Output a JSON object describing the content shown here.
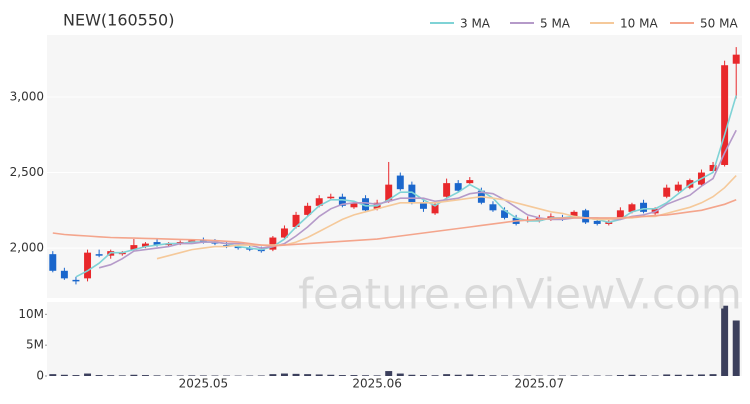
{
  "chart_data": {
    "type": "candlestick",
    "title": "NEW(160550)",
    "watermark": "feature.enViewV.com",
    "categories": [
      null,
      null,
      null,
      null,
      null,
      null,
      null,
      null,
      null,
      null,
      null,
      null,
      null,
      "2025.05",
      null,
      null,
      null,
      null,
      null,
      null,
      null,
      null,
      null,
      null,
      null,
      null,
      null,
      null,
      "2025.06",
      null,
      null,
      null,
      null,
      null,
      null,
      null,
      null,
      null,
      null,
      null,
      null,
      null,
      "2025.07",
      null,
      null,
      null,
      null,
      null,
      null,
      null,
      null,
      null,
      null,
      null,
      null,
      null,
      null,
      null,
      null,
      null
    ],
    "open": [
      1960,
      1850,
      1790,
      1800,
      1960,
      1950,
      1960,
      1990,
      2010,
      2040,
      2020,
      2030,
      2040,
      2050,
      2040,
      2020,
      2010,
      2000,
      1990,
      1990,
      2070,
      2140,
      2220,
      2280,
      2330,
      2340,
      2270,
      2330,
      2260,
      2310,
      2480,
      2420,
      2300,
      2230,
      2340,
      2430,
      2430,
      2380,
      2290,
      2250,
      2200,
      2180,
      2180,
      2190,
      2200,
      2210,
      2250,
      2180,
      2160,
      2200,
      2240,
      2300,
      2230,
      2340,
      2380,
      2400,
      2420,
      2510,
      2550,
      3220
    ],
    "high": [
      1980,
      1870,
      1810,
      1990,
      1990,
      1990,
      1980,
      2060,
      2040,
      2060,
      2040,
      2050,
      2060,
      2070,
      2060,
      2040,
      2030,
      2020,
      2010,
      2080,
      2150,
      2240,
      2300,
      2350,
      2360,
      2360,
      2310,
      2350,
      2320,
      2570,
      2500,
      2440,
      2320,
      2300,
      2460,
      2450,
      2470,
      2400,
      2310,
      2270,
      2220,
      2210,
      2220,
      2230,
      2220,
      2250,
      2260,
      2200,
      2190,
      2270,
      2300,
      2320,
      2270,
      2420,
      2440,
      2460,
      2520,
      2570,
      3240,
      3330
    ],
    "low": [
      1840,
      1790,
      1760,
      1780,
      1940,
      1930,
      1950,
      1980,
      2000,
      2010,
      2010,
      2020,
      2030,
      2030,
      2020,
      2000,
      1990,
      1980,
      1970,
      1980,
      2060,
      2130,
      2210,
      2270,
      2320,
      2270,
      2260,
      2240,
      2250,
      2300,
      2380,
      2290,
      2240,
      2220,
      2330,
      2370,
      2420,
      2290,
      2240,
      2190,
      2150,
      2170,
      2170,
      2180,
      2180,
      2200,
      2160,
      2150,
      2150,
      2190,
      2230,
      2230,
      2220,
      2330,
      2370,
      2390,
      2410,
      2500,
      2540,
      2990
    ],
    "close": [
      1850,
      1800,
      1780,
      1970,
      1950,
      1980,
      1970,
      2020,
      2030,
      2020,
      2030,
      2040,
      2050,
      2040,
      2030,
      2010,
      2000,
      1990,
      1980,
      2070,
      2130,
      2220,
      2280,
      2330,
      2340,
      2280,
      2300,
      2250,
      2300,
      2420,
      2390,
      2300,
      2260,
      2290,
      2430,
      2380,
      2450,
      2300,
      2250,
      2200,
      2160,
      2190,
      2200,
      2210,
      2190,
      2240,
      2170,
      2160,
      2170,
      2250,
      2290,
      2240,
      2260,
      2400,
      2420,
      2450,
      2500,
      2550,
      3210,
      3280
    ],
    "volume": [
      300000,
      200000,
      150000,
      400000,
      150000,
      120000,
      100000,
      200000,
      150000,
      100000,
      90000,
      80000,
      100000,
      90000,
      80000,
      70000,
      60000,
      70000,
      80000,
      300000,
      400000,
      350000,
      300000,
      250000,
      200000,
      150000,
      150000,
      120000,
      100000,
      800000,
      400000,
      200000,
      150000,
      120000,
      300000,
      200000,
      250000,
      150000,
      120000,
      100000,
      90000,
      80000,
      70000,
      70000,
      80000,
      100000,
      90000,
      80000,
      70000,
      150000,
      200000,
      120000,
      100000,
      250000,
      200000,
      200000,
      250000,
      300000,
      11400000,
      9000000
    ],
    "series": [
      {
        "name": "3 MA",
        "color": "#7fd3d6",
        "values": [
          null,
          null,
          1810,
          1850,
          1900,
          1970,
          1970,
          1990,
          2010,
          2020,
          2030,
          2030,
          2040,
          2040,
          2040,
          2030,
          2010,
          2000,
          1990,
          2010,
          2060,
          2140,
          2210,
          2280,
          2320,
          2320,
          2310,
          2280,
          2280,
          2320,
          2370,
          2370,
          2320,
          2280,
          2330,
          2370,
          2420,
          2380,
          2330,
          2250,
          2200,
          2180,
          2180,
          2200,
          2200,
          2210,
          2200,
          2190,
          2170,
          2190,
          2240,
          2260,
          2260,
          2300,
          2360,
          2420,
          2460,
          2500,
          2750,
          3010
        ]
      },
      {
        "name": "5 MA",
        "color": "#b59ac9",
        "values": [
          null,
          null,
          null,
          null,
          1870,
          1890,
          1930,
          1980,
          1990,
          2000,
          2010,
          2030,
          2030,
          2040,
          2040,
          2030,
          2030,
          2020,
          2000,
          2010,
          2030,
          2080,
          2140,
          2210,
          2260,
          2290,
          2300,
          2300,
          2290,
          2310,
          2330,
          2330,
          2330,
          2310,
          2320,
          2330,
          2360,
          2370,
          2360,
          2320,
          2270,
          2220,
          2200,
          2190,
          2190,
          2200,
          2200,
          2200,
          2190,
          2190,
          2210,
          2220,
          2240,
          2290,
          2320,
          2350,
          2410,
          2460,
          2630,
          2780
        ]
      },
      {
        "name": "10 MA",
        "color": "#f5c99a",
        "values": [
          null,
          null,
          null,
          null,
          null,
          null,
          null,
          null,
          null,
          1930,
          1950,
          1970,
          1990,
          2000,
          2010,
          2010,
          2020,
          2020,
          2020,
          2020,
          2020,
          2040,
          2070,
          2110,
          2150,
          2190,
          2220,
          2240,
          2260,
          2280,
          2300,
          2300,
          2300,
          2300,
          2310,
          2320,
          2330,
          2340,
          2330,
          2320,
          2300,
          2280,
          2260,
          2240,
          2230,
          2210,
          2200,
          2190,
          2190,
          2200,
          2200,
          2210,
          2210,
          2230,
          2250,
          2270,
          2300,
          2340,
          2400,
          2480
        ]
      },
      {
        "name": "50 MA",
        "color": "#f4a58c",
        "values": [
          2100,
          2090,
          2085,
          2080,
          2075,
          2070,
          2068,
          2066,
          2064,
          2062,
          2060,
          2058,
          2056,
          2054,
          2050,
          2045,
          2040,
          2030,
          2020,
          2015,
          2020,
          2025,
          2030,
          2035,
          2040,
          2045,
          2050,
          2055,
          2060,
          2070,
          2080,
          2090,
          2100,
          2110,
          2120,
          2130,
          2140,
          2150,
          2160,
          2170,
          2180,
          2185,
          2190,
          2195,
          2200,
          2200,
          2200,
          2200,
          2200,
          2200,
          2205,
          2210,
          2215,
          2220,
          2230,
          2240,
          2250,
          2270,
          2290,
          2320
        ]
      }
    ],
    "up_color": "#e8282b",
    "down_color": "#1a66cc",
    "ylim": [
      1670,
      3410
    ],
    "yticks": [
      {
        "value": 2000,
        "label": "2,000"
      },
      {
        "value": 2500,
        "label": "2,500"
      },
      {
        "value": 3000,
        "label": "3,000"
      }
    ],
    "volume_ylim": [
      0,
      12000000
    ],
    "volume_ticks": [
      {
        "value": 0,
        "label": "0"
      },
      {
        "value": 5000000,
        "label": "5M"
      },
      {
        "value": 10000000,
        "label": "10M"
      }
    ],
    "volume_color": "#3b3f5c",
    "grid": true
  }
}
